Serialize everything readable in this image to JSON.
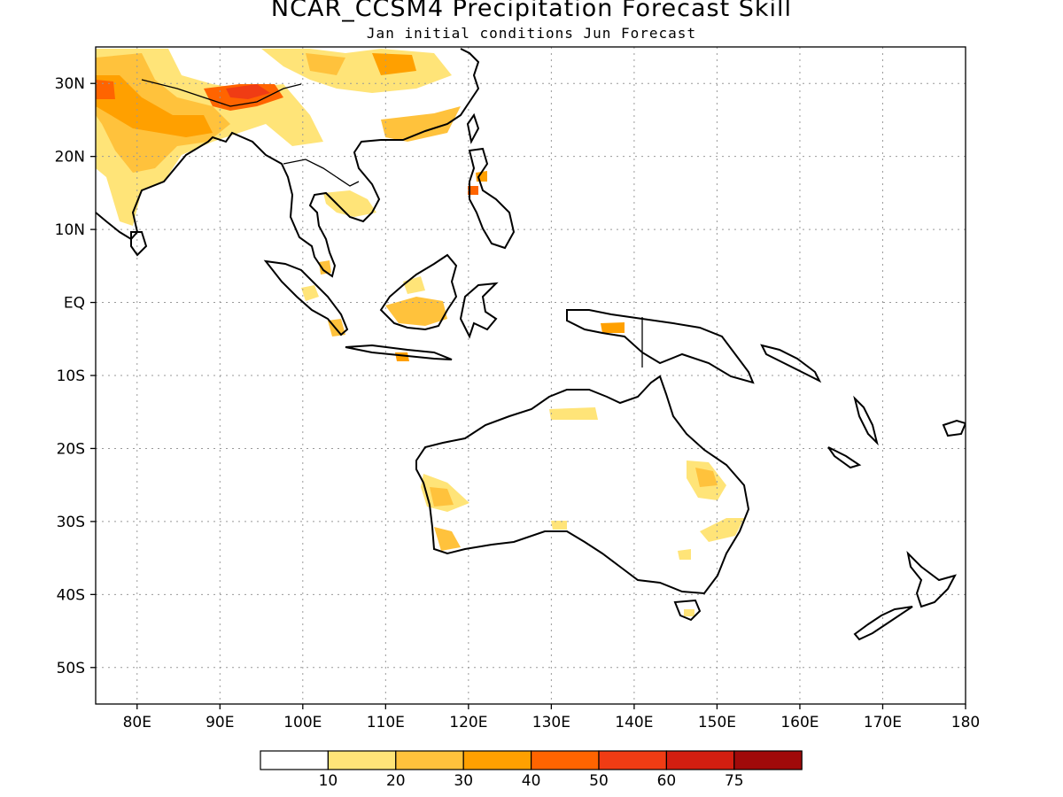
{
  "title": "NCAR_CCSM4 Precipitation Forecast Skill",
  "subtitle": "Jan initial conditions  Jun Forecast",
  "map": {
    "lon_range": [
      75,
      180
    ],
    "lat_range": [
      -55,
      35
    ],
    "lat_labels": [
      "30N",
      "20N",
      "10N",
      "EQ",
      "10S",
      "20S",
      "30S",
      "40S",
      "50S"
    ],
    "lat_values": [
      30,
      20,
      10,
      0,
      -10,
      -20,
      -30,
      -40,
      -50
    ],
    "lon_labels": [
      "80E",
      "90E",
      "100E",
      "110E",
      "120E",
      "130E",
      "140E",
      "150E",
      "160E",
      "170E",
      "180"
    ],
    "lon_values": [
      80,
      90,
      100,
      110,
      120,
      130,
      140,
      150,
      160,
      170,
      180
    ],
    "grid": "dotted"
  },
  "colorbar": {
    "colors": [
      "#ffffff",
      "#ffe478",
      "#ffc23c",
      "#ffa000",
      "#ff6400",
      "#f03c14",
      "#d21e10",
      "#a00a0a"
    ],
    "labels": [
      "10",
      "20",
      "30",
      "40",
      "50",
      "60",
      "75"
    ]
  }
}
